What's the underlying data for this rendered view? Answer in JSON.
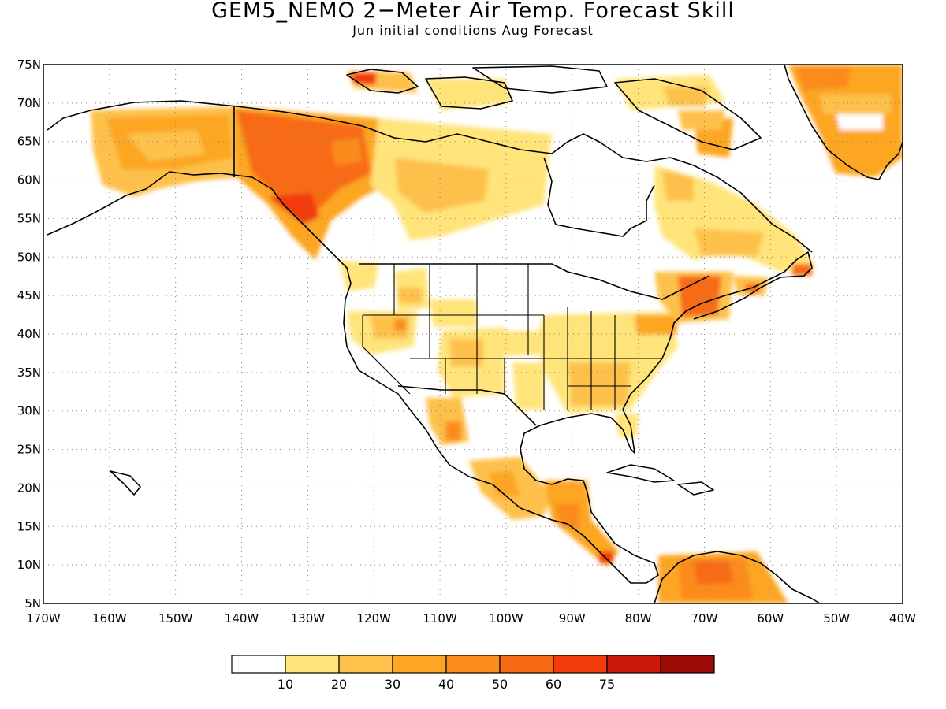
{
  "title": "GEM5_NEMO 2−Meter Air Temp. Forecast Skill",
  "subtitle": "Jun initial conditions  Aug Forecast",
  "map": {
    "projection": "lat-lon",
    "lon_range": [
      -170,
      -40
    ],
    "lat_range": [
      5,
      75
    ],
    "grid": "dotted",
    "lat_ticks": [
      "75N",
      "70N",
      "65N",
      "60N",
      "55N",
      "50N",
      "45N",
      "40N",
      "35N",
      "30N",
      "25N",
      "20N",
      "15N",
      "10N",
      "5N"
    ],
    "lon_ticks": [
      "170W",
      "160W",
      "150W",
      "140W",
      "130W",
      "120W",
      "110W",
      "100W",
      "90W",
      "80W",
      "70W",
      "60W",
      "50W",
      "40W"
    ],
    "land_outline_color": "#000000"
  },
  "colorbar": {
    "bins": [
      {
        "color": "#ffffff"
      },
      {
        "color": "#ffe47a"
      },
      {
        "color": "#fdc14c"
      },
      {
        "color": "#fca624"
      },
      {
        "color": "#fb8b1c"
      },
      {
        "color": "#f76a14"
      },
      {
        "color": "#f13b0c"
      },
      {
        "color": "#cc1808"
      },
      {
        "color": "#9c0c06"
      }
    ],
    "labels": [
      "10",
      "20",
      "30",
      "40",
      "50",
      "60",
      "75"
    ]
  },
  "skill_areas": [
    {
      "region": "Alaska",
      "level": 2
    },
    {
      "region": "Yukon / British Columbia",
      "level": 4
    },
    {
      "region": "Canadian Arctic",
      "level": 2
    },
    {
      "region": "Eastern Canada",
      "level": 2
    },
    {
      "region": "US Northeast",
      "level": 4
    },
    {
      "region": "US Southeast",
      "level": 2
    },
    {
      "region": "US Interior West",
      "level": 1
    },
    {
      "region": "Mexico",
      "level": 2
    },
    {
      "region": "Central America",
      "level": 3
    },
    {
      "region": "Northern South America",
      "level": 4
    },
    {
      "region": "Greenland",
      "level": 3
    }
  ]
}
